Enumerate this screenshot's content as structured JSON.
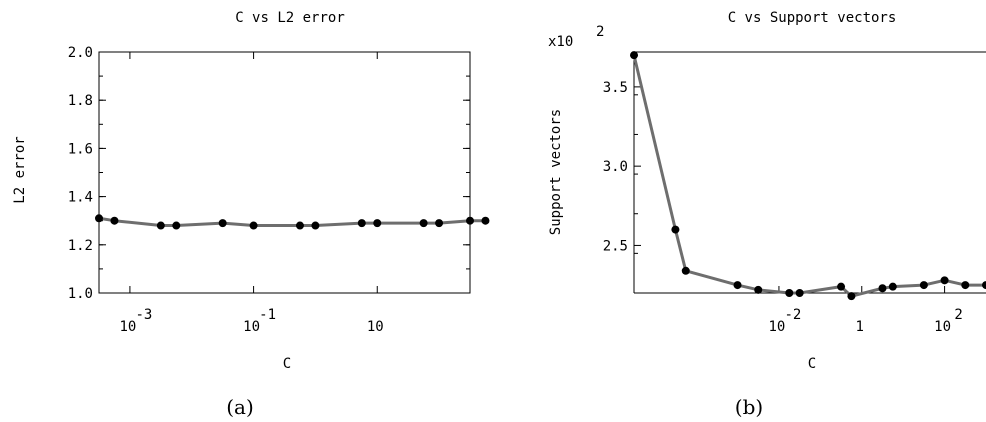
{
  "chart_data": [
    {
      "type": "line",
      "title": "C vs L2 error",
      "xlabel": "C",
      "ylabel": "L2 error",
      "caption": "(a)",
      "xscale": "log",
      "xlim_log10": [
        -3.5,
        2.5
      ],
      "ylim": [
        1.0,
        2.0
      ],
      "yticks": [
        "1.0",
        "1.2",
        "1.4",
        "1.6",
        "1.8",
        "2.0"
      ],
      "xticks": [
        {
          "base": "10",
          "exp": "-3",
          "log10": -3
        },
        {
          "base": "10",
          "exp": "-1",
          "log10": -1
        },
        {
          "base": "10",
          "exp": "",
          "log10": 1
        }
      ],
      "grid": false,
      "series": [
        {
          "color": "#6e6e6e",
          "marker_color": "#000000",
          "x_log10": [
            -3.5,
            -3.25,
            -2.5,
            -2.25,
            -1.5,
            -1.0,
            -0.25,
            0.0,
            0.75,
            1.0,
            1.75,
            2.0,
            2.5,
            2.75
          ],
          "y": [
            1.31,
            1.3,
            1.28,
            1.28,
            1.29,
            1.28,
            1.28,
            1.28,
            1.29,
            1.29,
            1.29,
            1.29,
            1.3,
            1.3
          ]
        }
      ]
    },
    {
      "type": "line",
      "title": "C vs Support vectors",
      "xlabel": "C",
      "ylabel": "Support vectors",
      "caption": "(b)",
      "y_multiplier": {
        "base": "x10",
        "exp": "2"
      },
      "xscale": "log",
      "xlim_log10": [
        -5.5,
        3.0
      ],
      "ylim": [
        2.2,
        3.72
      ],
      "yticks": [
        "2.5",
        "3.0",
        "3.5"
      ],
      "xticks": [
        {
          "base": "10",
          "exp": "-2",
          "log10": -2
        },
        {
          "base": "1",
          "exp": "",
          "log10": 0
        },
        {
          "base": "10",
          "exp": "2",
          "log10": 2
        }
      ],
      "grid": false,
      "series": [
        {
          "color": "#6e6e6e",
          "marker_color": "#000000",
          "x_log10": [
            -5.5,
            -4.5,
            -4.25,
            -3.0,
            -2.5,
            -1.75,
            -1.5,
            -0.5,
            -0.25,
            0.5,
            0.75,
            1.5,
            2.0,
            2.5,
            3.0
          ],
          "y": [
            3.7,
            2.6,
            2.34,
            2.25,
            2.22,
            2.2,
            2.2,
            2.24,
            2.18,
            2.23,
            2.24,
            2.25,
            2.28,
            2.25,
            2.25
          ]
        }
      ]
    }
  ]
}
